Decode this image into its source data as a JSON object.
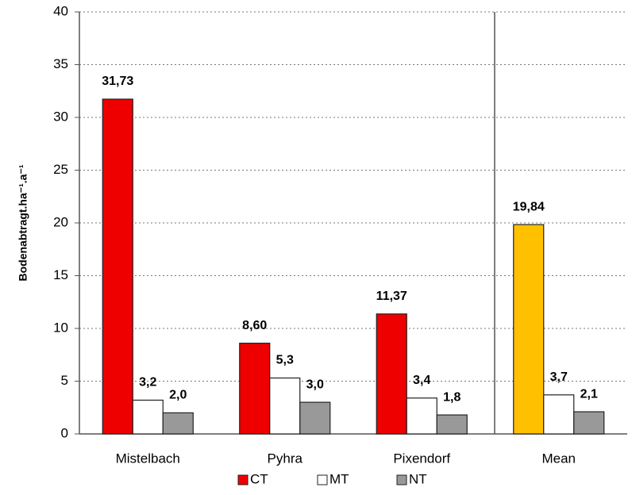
{
  "chart_data": {
    "type": "bar",
    "y_label": "Bodenabtragt.ha⁻¹.a⁻¹",
    "categories": [
      "Mistelbach",
      "Pyhra",
      "Pixendorf",
      "Mean"
    ],
    "series": [
      {
        "name": "CT",
        "color": "#ee0000",
        "colors": [
          "#ee0000",
          "#ee0000",
          "#ee0000",
          "#ffc000"
        ],
        "values": [
          31.73,
          8.6,
          11.37,
          19.84
        ],
        "value_labels": [
          "31,73",
          "8,60",
          "11,37",
          "19,84"
        ]
      },
      {
        "name": "MT",
        "color": "#ffffff",
        "values": [
          3.2,
          5.3,
          3.4,
          3.7
        ],
        "value_labels": [
          "3,2",
          "5,3",
          "3,4",
          "3,7"
        ]
      },
      {
        "name": "NT",
        "color": "#999999",
        "values": [
          2.0,
          3.0,
          1.8,
          2.1
        ],
        "value_labels": [
          "2,0",
          "3,0",
          "1,8",
          "2,1"
        ]
      }
    ],
    "ylim": [
      0,
      40
    ],
    "yticks": [
      0,
      5,
      10,
      15,
      20,
      25,
      30,
      35,
      40
    ],
    "grid": true
  }
}
